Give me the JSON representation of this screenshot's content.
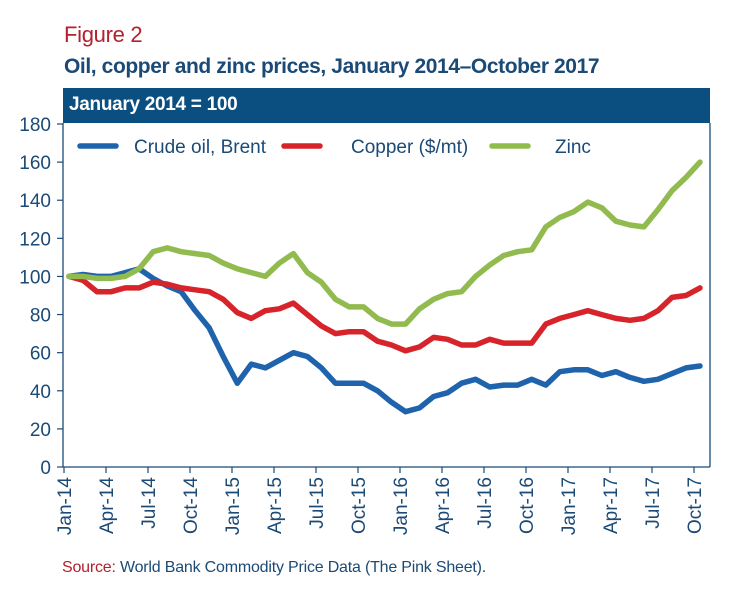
{
  "figure_label": "Figure 2",
  "title": "Oil, copper and zinc prices, January 2014–October 2017",
  "header_note": "January 2014 = 100",
  "source": {
    "label": "Source:",
    "text": " World Bank Commodity Price Data (The Pink Sheet)."
  },
  "colors": {
    "oil": "#1f63ad",
    "copper": "#d7242b",
    "zinc": "#92bb4f",
    "axis": "#1b4a76",
    "header_bg": "#0b4f80",
    "figure_label": "#b3202e"
  },
  "chart_data": {
    "type": "line",
    "title": "Oil, copper and zinc prices, January 2014–October 2017",
    "subtitle": "January 2014 = 100",
    "xlabel": "",
    "ylabel": "",
    "ylim": [
      0,
      180
    ],
    "yticks": [
      0,
      20,
      40,
      60,
      80,
      100,
      120,
      140,
      160,
      180
    ],
    "grid": false,
    "legend_position": "top",
    "x": [
      "Jan-14",
      "Feb-14",
      "Mar-14",
      "Apr-14",
      "May-14",
      "Jun-14",
      "Jul-14",
      "Aug-14",
      "Sep-14",
      "Oct-14",
      "Nov-14",
      "Dec-14",
      "Jan-15",
      "Feb-15",
      "Mar-15",
      "Apr-15",
      "May-15",
      "Jun-15",
      "Jul-15",
      "Aug-15",
      "Sep-15",
      "Oct-15",
      "Nov-15",
      "Dec-15",
      "Jan-16",
      "Feb-16",
      "Mar-16",
      "Apr-16",
      "May-16",
      "Jun-16",
      "Jul-16",
      "Aug-16",
      "Sep-16",
      "Oct-16",
      "Nov-16",
      "Dec-16",
      "Jan-17",
      "Feb-17",
      "Mar-17",
      "Apr-17",
      "May-17",
      "Jun-17",
      "Jul-17",
      "Aug-17",
      "Sep-17",
      "Oct-17"
    ],
    "xtick_labels": [
      "Jan-14",
      "Apr-14",
      "Jul-14",
      "Oct-14",
      "Jan-15",
      "Apr-15",
      "Jul-15",
      "Oct-15",
      "Jan-16",
      "Apr-16",
      "Jul-16",
      "Oct-16",
      "Jan-17",
      "Apr-17",
      "Jul-17",
      "Oct-17"
    ],
    "series": [
      {
        "name": "Crude oil, Brent",
        "color_key": "oil",
        "values": [
          100,
          101,
          100,
          100,
          102,
          104,
          99,
          95,
          92,
          82,
          73,
          58,
          44,
          54,
          52,
          56,
          60,
          58,
          52,
          44,
          44,
          44,
          40,
          34,
          29,
          31,
          37,
          39,
          44,
          46,
          42,
          43,
          43,
          46,
          43,
          50,
          51,
          51,
          48,
          50,
          47,
          45,
          46,
          49,
          52,
          53
        ]
      },
      {
        "name": "Copper ($/mt)",
        "color_key": "copper",
        "values": [
          100,
          98,
          92,
          92,
          94,
          94,
          97,
          96,
          94,
          93,
          92,
          88,
          81,
          78,
          82,
          83,
          86,
          80,
          74,
          70,
          71,
          71,
          66,
          64,
          61,
          63,
          68,
          67,
          64,
          64,
          67,
          65,
          65,
          65,
          75,
          78,
          80,
          82,
          80,
          78,
          77,
          78,
          82,
          89,
          90,
          94
        ]
      },
      {
        "name": "Zinc",
        "color_key": "zinc",
        "values": [
          100,
          100,
          99,
          99,
          100,
          104,
          113,
          115,
          113,
          112,
          111,
          107,
          104,
          102,
          100,
          107,
          112,
          102,
          97,
          88,
          84,
          84,
          78,
          75,
          75,
          83,
          88,
          91,
          92,
          100,
          106,
          111,
          113,
          114,
          126,
          131,
          134,
          139,
          136,
          129,
          127,
          126,
          135,
          145,
          152,
          160
        ]
      }
    ]
  }
}
